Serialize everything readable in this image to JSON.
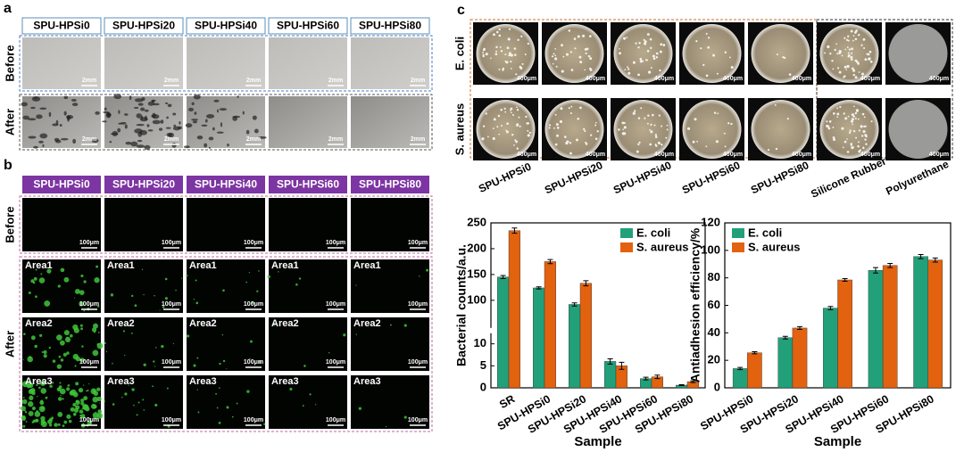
{
  "panel_a": {
    "letter": "a",
    "columns": [
      "SPU-HPSi0",
      "SPU-HPSi20",
      "SPU-HPSi40",
      "SPU-HPSi60",
      "SPU-HPSi80"
    ],
    "rows": [
      "Before",
      "After"
    ],
    "scale_bar": "2mm"
  },
  "panel_b": {
    "letter": "b",
    "columns": [
      "SPU-HPSi0",
      "SPU-HPSi20",
      "SPU-HPSi40",
      "SPU-HPSi60",
      "SPU-HPSi80"
    ],
    "rows": [
      "Before",
      "After"
    ],
    "areas": [
      "Area1",
      "Area2",
      "Area3"
    ],
    "scale_bar": "100μm"
  },
  "panel_c": {
    "letter": "c",
    "rows": [
      "E. coli",
      "S. aureus"
    ],
    "columns": [
      "SPU-HPSi0",
      "SPU-HPSi20",
      "SPU-HPSi40",
      "SPU-HPSi60",
      "SPU-HPSi80",
      "Silicone Rubber",
      "Polyurethane"
    ],
    "scale_bar": "400μm"
  },
  "chart_data": [
    {
      "type": "bar",
      "xlabel": "Sample",
      "ylabel": "Bacterial counts/a.u.",
      "categories": [
        "SR",
        "SPU-HPSi0",
        "SPU-HPSi20",
        "SPU-HPSi40",
        "SPU-HPSi60",
        "SPU-HPSi80"
      ],
      "series": [
        {
          "name": "E. coli",
          "color": "#22a07a",
          "values": [
            145,
            124,
            92,
            6,
            2.1,
            0.6
          ],
          "errors": [
            3,
            2,
            3,
            0.6,
            0.3,
            0.1
          ]
        },
        {
          "name": "S. aureus",
          "color": "#e2620f",
          "values": [
            235,
            175,
            133,
            5,
            2.5,
            1.4
          ],
          "errors": [
            5,
            4,
            5,
            0.8,
            0.4,
            0.2
          ]
        }
      ],
      "ylim": [
        0,
        250
      ],
      "axis_break": [
        12,
        50
      ],
      "yticks": [
        0,
        5,
        10,
        100,
        150,
        200,
        250
      ],
      "legend": "upper right"
    },
    {
      "type": "bar",
      "xlabel": "Sample",
      "ylabel": "Antiadhesion efficiency/%",
      "categories": [
        "SPU-HPSi0",
        "SPU-HPSi20",
        "SPU-HPSi40",
        "SPU-HPSi60",
        "SPU-HPSi80"
      ],
      "series": [
        {
          "name": "E. coli",
          "color": "#22a07a",
          "values": [
            14,
            36.5,
            58,
            85.5,
            95.5
          ],
          "errors": [
            0.8,
            1,
            1.2,
            2,
            1.5
          ]
        },
        {
          "name": "S. aureus",
          "color": "#e2620f",
          "values": [
            25.5,
            43.5,
            78.5,
            89,
            93
          ],
          "errors": [
            0.8,
            1,
            1,
            1.5,
            1.5
          ]
        }
      ],
      "ylim": [
        0,
        120
      ],
      "yticks": [
        0,
        20,
        40,
        60,
        80,
        100,
        120
      ],
      "legend": "upper left"
    }
  ]
}
